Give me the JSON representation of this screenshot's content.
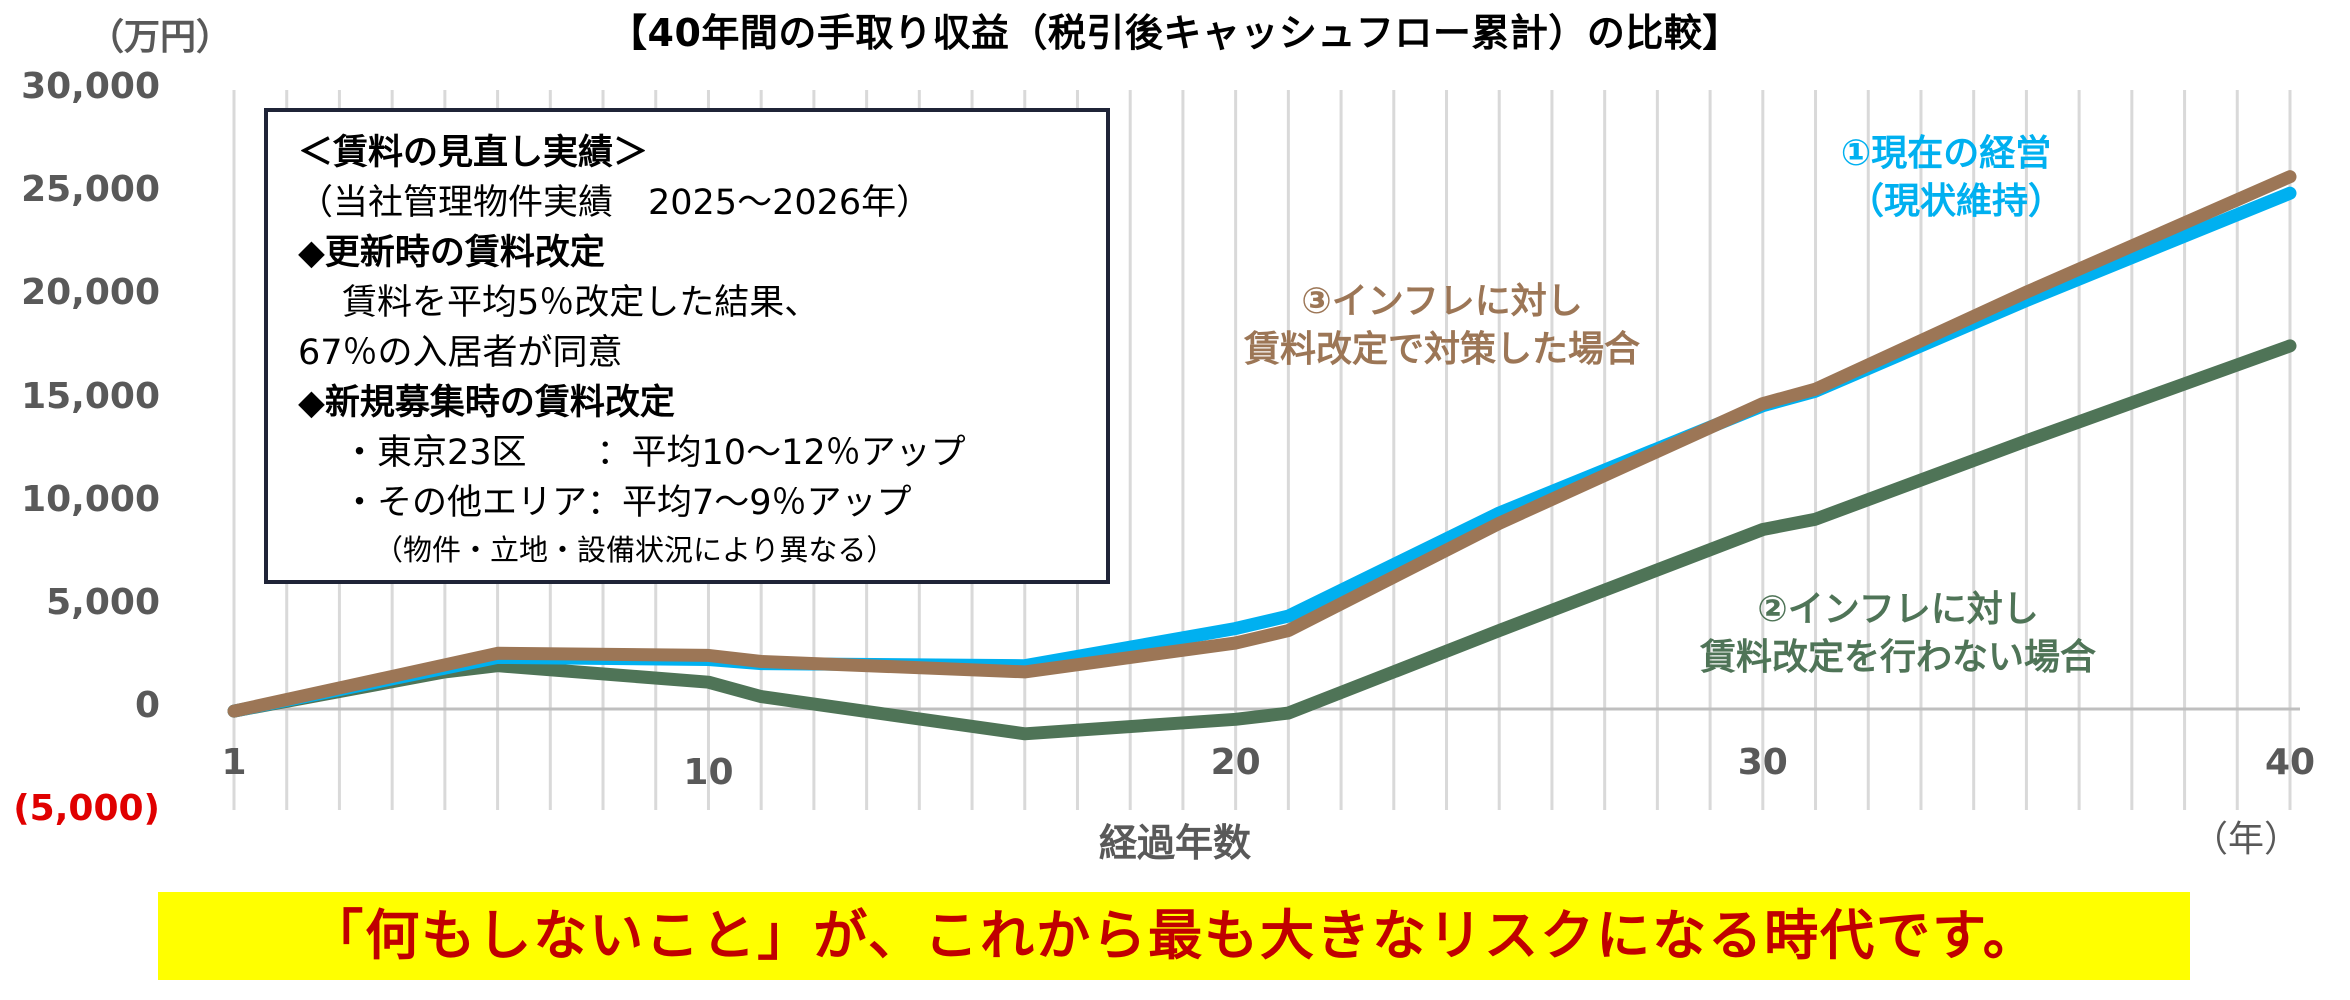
{
  "chart_data": {
    "type": "line",
    "title": "【40年間の手取り収益（税引後キャッシュフロー累計）の比較】",
    "ylabel_unit": "（万円）",
    "xlabel": "経過年数",
    "xunit": "（年）",
    "xlim": [
      1,
      40
    ],
    "ylim": [
      -5000,
      30000
    ],
    "x_ticks": [
      1,
      10,
      20,
      30,
      40
    ],
    "y_ticks": [
      {
        "value": 30000,
        "label": "30,000"
      },
      {
        "value": 25000,
        "label": "25,000"
      },
      {
        "value": 20000,
        "label": "20,000"
      },
      {
        "value": 15000,
        "label": "15,000"
      },
      {
        "value": 10000,
        "label": "10,000"
      },
      {
        "value": 5000,
        "label": "5,000"
      },
      {
        "value": 0,
        "label": "0"
      },
      {
        "value": -5000,
        "label": "(5,000)"
      }
    ],
    "grid": "vertical",
    "series": [
      {
        "name": "①現在の経営（現状維持）",
        "color": "#00b0f0",
        "points": [
          [
            1,
            -100
          ],
          [
            6,
            2500
          ],
          [
            10,
            2400
          ],
          [
            11,
            2200
          ],
          [
            16,
            2100
          ],
          [
            20,
            3900
          ],
          [
            21,
            4500
          ],
          [
            25,
            9500
          ],
          [
            30,
            14700
          ],
          [
            31,
            15400
          ],
          [
            35,
            19800
          ],
          [
            40,
            25000
          ]
        ]
      },
      {
        "name": "②インフレに対し賃料改定を行わない場合",
        "color": "#4f7457",
        "points": [
          [
            1,
            -100
          ],
          [
            5,
            1800
          ],
          [
            6,
            2100
          ],
          [
            10,
            1300
          ],
          [
            11,
            600
          ],
          [
            16,
            -1200
          ],
          [
            20,
            -500
          ],
          [
            21,
            -200
          ],
          [
            25,
            3800
          ],
          [
            30,
            8700
          ],
          [
            31,
            9200
          ],
          [
            35,
            13000
          ],
          [
            40,
            17600
          ]
        ]
      },
      {
        "name": "③インフレに対し賃料改定で対策した場合",
        "color": "#9c7656",
        "points": [
          [
            1,
            -100
          ],
          [
            6,
            2700
          ],
          [
            10,
            2600
          ],
          [
            11,
            2300
          ],
          [
            16,
            1800
          ],
          [
            20,
            3200
          ],
          [
            21,
            3800
          ],
          [
            25,
            9000
          ],
          [
            30,
            14800
          ],
          [
            31,
            15500
          ],
          [
            35,
            20200
          ],
          [
            40,
            25800
          ]
        ]
      }
    ]
  },
  "labels": {
    "series1_line1": "①現在の経営",
    "series1_line2": "（現状維持）",
    "series2_line1": "②インフレに対し",
    "series2_line2": "賃料改定を行わない場合",
    "series3_line1": "③インフレに対し",
    "series3_line2": "賃料改定で対策した場合"
  },
  "info_box": {
    "heading": "＜賃料の見直し実績＞",
    "subheading": "（当社管理物件実績　2025～2026年）",
    "renewal_title": "◆更新時の賃料改定",
    "renewal_line1": "賃料を平均5％改定した結果、",
    "renewal_line2": "67％の入居者が同意",
    "new_title": "◆新規募集時の賃料改定",
    "new_tokyo": "・東京23区　　：平均10～12％アップ",
    "new_other": "・その他エリア：平均7～9％アップ",
    "note": "（物件・立地・設備状況により異なる）"
  },
  "banner": "「何もしないこと」が、これから最も大きなリスクになる時代です。"
}
